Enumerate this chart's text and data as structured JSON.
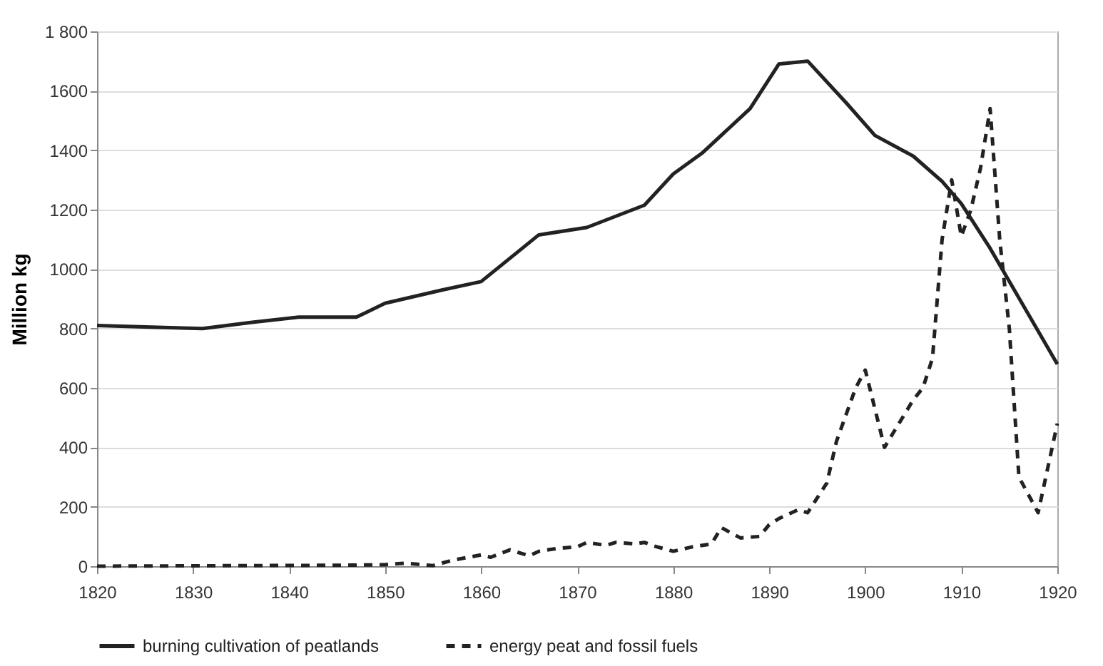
{
  "chart_data": {
    "type": "line",
    "ylabel": "Million kg",
    "legend": "bottom",
    "grid": "y",
    "xlim": [
      1820,
      1920
    ],
    "xticks": [
      1820,
      1830,
      1840,
      1850,
      1860,
      1870,
      1880,
      1890,
      1900,
      1910,
      1920
    ],
    "ylim": [
      0,
      1800
    ],
    "yticks": [
      0,
      200,
      400,
      600,
      800,
      1000,
      1200,
      1400,
      1600,
      {
        "value": 1800,
        "label": "1 800"
      }
    ],
    "series": [
      {
        "name": "burning cultivation of peatlands",
        "color": "#222222",
        "line_style": "solid",
        "x": [
          1820,
          1825,
          1831,
          1836,
          1841,
          1847,
          1850,
          1856,
          1860,
          1866,
          1871,
          1877,
          1880,
          1883,
          1888,
          1891,
          1894,
          1898,
          1901,
          1905,
          1908,
          1910,
          1913,
          1920
        ],
        "values": [
          810,
          805,
          800,
          820,
          838,
          838,
          885,
          930,
          958,
          1115,
          1140,
          1215,
          1320,
          1390,
          1540,
          1690,
          1700,
          1560,
          1450,
          1380,
          1295,
          1220,
          1070,
          680
        ]
      },
      {
        "name": "energy peat and fossil fuels",
        "color": "#222222",
        "line_style": "dashed",
        "x": [
          1820,
          1845,
          1850,
          1852,
          1855,
          1857,
          1860,
          1861,
          1863,
          1865,
          1866,
          1868,
          1870,
          1871,
          1873,
          1874,
          1876,
          1877,
          1878,
          1880,
          1882,
          1884,
          1885,
          1887,
          1889,
          1890,
          1891,
          1893,
          1894,
          1896,
          1897,
          1899,
          1900,
          1902,
          1905,
          1906,
          1907,
          1908,
          1909,
          1910,
          1911,
          1912,
          1913,
          1914,
          1915,
          1916,
          1918,
          1920
        ],
        "values": [
          0,
          3,
          5,
          10,
          2,
          20,
          38,
          30,
          55,
          35,
          50,
          60,
          65,
          80,
          70,
          80,
          75,
          80,
          68,
          50,
          65,
          75,
          130,
          95,
          100,
          140,
          160,
          190,
          180,
          280,
          420,
          600,
          660,
          400,
          560,
          600,
          700,
          1100,
          1300,
          1110,
          1200,
          1340,
          1540,
          1100,
          800,
          300,
          180,
          480
        ]
      }
    ]
  }
}
